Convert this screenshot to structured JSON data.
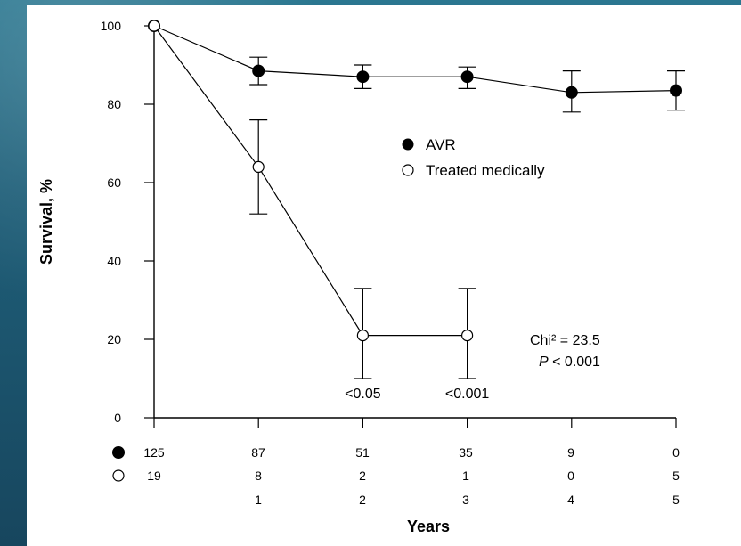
{
  "chart_data": {
    "type": "line",
    "xlabel": "Years",
    "ylabel": "Survival, %",
    "xlim": [
      0,
      5
    ],
    "ylim": [
      0,
      100
    ],
    "x_ticks": [
      0,
      1,
      2,
      3,
      4,
      5
    ],
    "y_ticks": [
      0,
      20,
      40,
      60,
      80,
      100
    ],
    "grid": false,
    "legend_position": "upper middle",
    "series": [
      {
        "name": "AVR",
        "marker": "filled-circle",
        "x": [
          0,
          1,
          2,
          3,
          4,
          5
        ],
        "values": [
          100,
          88.5,
          87,
          87,
          83,
          83.5
        ],
        "error_low": [
          100,
          85,
          84,
          84,
          78,
          78.5
        ],
        "error_high": [
          100,
          92,
          90,
          89.5,
          88.5,
          88.5
        ]
      },
      {
        "name": "Treated medically",
        "marker": "open-circle",
        "x": [
          0,
          1,
          2,
          3
        ],
        "values": [
          100,
          64,
          21,
          21
        ],
        "error_low": [
          100,
          52,
          10,
          10
        ],
        "error_high": [
          100,
          76,
          33,
          33
        ]
      }
    ],
    "annotations": [
      {
        "text": "<0.05",
        "x": 2,
        "y": 5
      },
      {
        "text": "<0.001",
        "x": 3,
        "y": 5
      }
    ],
    "stats": {
      "line1": "Chi² = 23.5",
      "line2_prefix": "P",
      "line2_suffix": " < 0.001"
    },
    "risk_table": {
      "avr_counts": [
        "125",
        "87",
        "51",
        "35",
        "9",
        "0"
      ],
      "medical_counts": [
        "19",
        "8",
        "2",
        "1",
        "0",
        "5"
      ],
      "year_labels": [
        "1",
        "2",
        "3",
        "4",
        "5"
      ]
    }
  }
}
